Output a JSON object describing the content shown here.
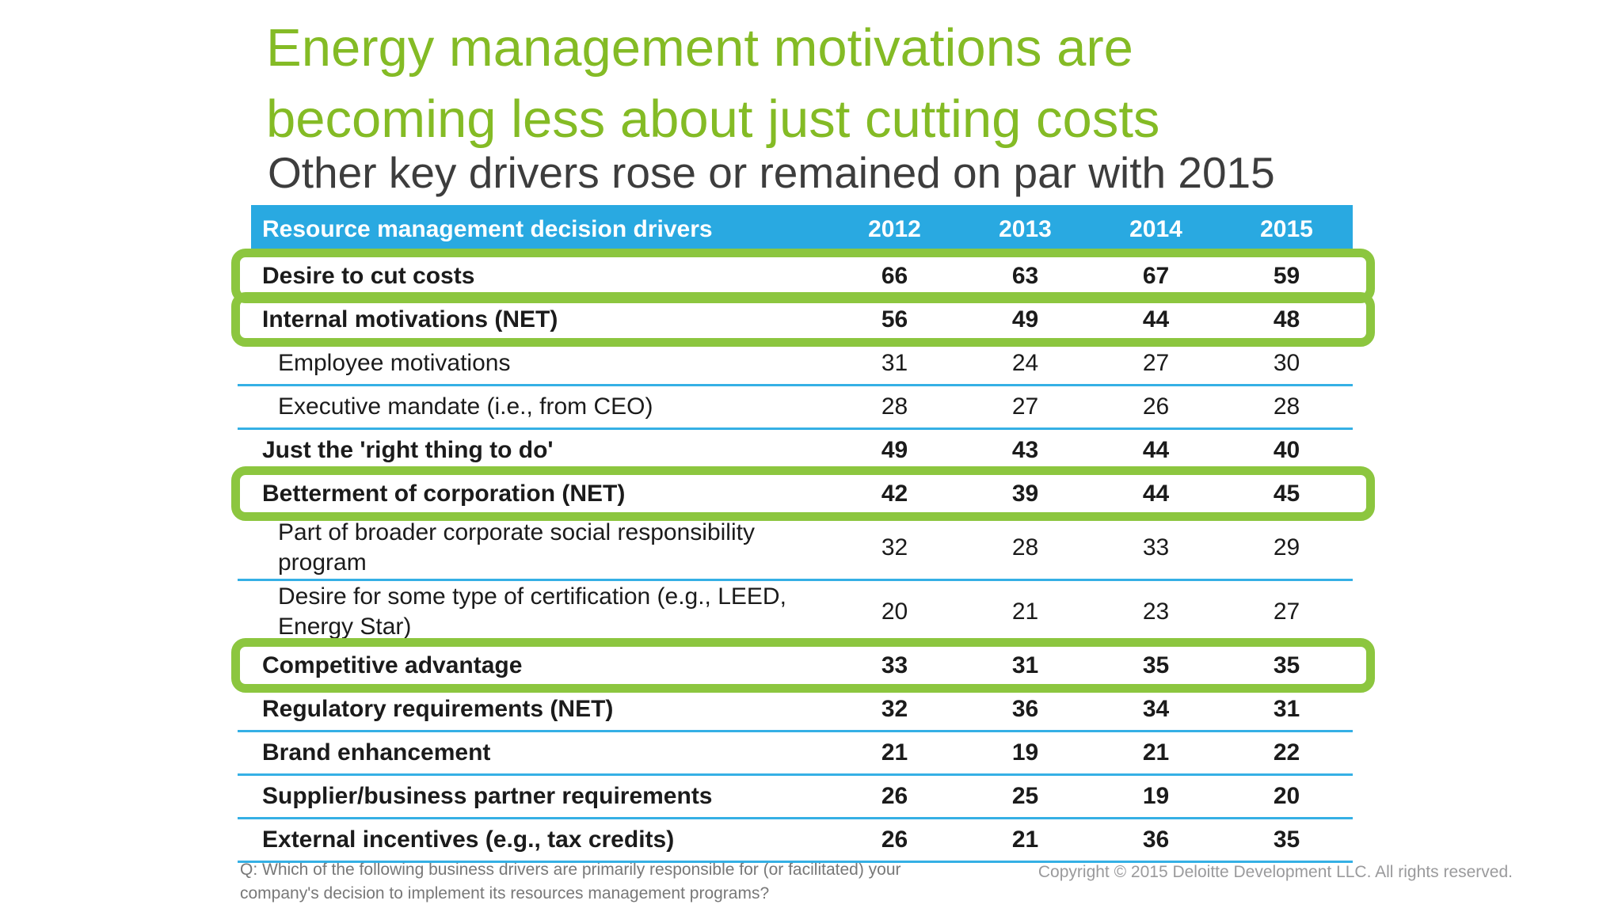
{
  "slide": {
    "title_line1": "Energy management motivations are",
    "title_line2": "becoming less about just cutting costs",
    "subtitle": "Other key drivers rose or remained on par with 2015",
    "footnote": "Q: Which of the following business drivers are primarily responsible for (or facilitated) your company's decision to implement its resources management programs?",
    "copyright": "Copyright © 2015 Deloitte Development LLC. All rights reserved."
  },
  "colors": {
    "title_green": "#84BB25",
    "highlight_box_green": "#8CC63F",
    "header_blue": "#29A9E1",
    "row_divider_blue": "#35B0E5"
  },
  "table": {
    "header": {
      "label": "Resource management decision drivers",
      "years": [
        "2012",
        "2013",
        "2014",
        "2015"
      ]
    },
    "rows": [
      {
        "label": "Desire to cut costs",
        "values": [
          "66",
          "63",
          "67",
          "59"
        ],
        "bold": true,
        "highlighted": true
      },
      {
        "label": "Internal motivations (NET)",
        "values": [
          "56",
          "49",
          "44",
          "48"
        ],
        "bold": true,
        "highlighted": true
      },
      {
        "label": "Employee motivations",
        "values": [
          "31",
          "24",
          "27",
          "30"
        ],
        "bold": false,
        "highlighted": false
      },
      {
        "label": "Executive mandate (i.e., from CEO)",
        "values": [
          "28",
          "27",
          "26",
          "28"
        ],
        "bold": false,
        "highlighted": false
      },
      {
        "label": "Just the 'right thing to do'",
        "values": [
          "49",
          "43",
          "44",
          "40"
        ],
        "bold": true,
        "highlighted": false
      },
      {
        "label": "Betterment of corporation (NET)",
        "values": [
          "42",
          "39",
          "44",
          "45"
        ],
        "bold": true,
        "highlighted": true
      },
      {
        "label": "Part of broader corporate social responsibility program",
        "values": [
          "32",
          "28",
          "33",
          "29"
        ],
        "bold": false,
        "highlighted": false
      },
      {
        "label": "Desire for some type of certification (e.g., LEED, Energy Star)",
        "values": [
          "20",
          "21",
          "23",
          "27"
        ],
        "bold": false,
        "highlighted": false
      },
      {
        "label": "Competitive advantage",
        "values": [
          "33",
          "31",
          "35",
          "35"
        ],
        "bold": true,
        "highlighted": true
      },
      {
        "label": "Regulatory requirements (NET)",
        "values": [
          "32",
          "36",
          "34",
          "31"
        ],
        "bold": true,
        "highlighted": false
      },
      {
        "label": "Brand enhancement",
        "values": [
          "21",
          "19",
          "21",
          "22"
        ],
        "bold": true,
        "highlighted": false
      },
      {
        "label": "Supplier/business partner requirements",
        "values": [
          "26",
          "25",
          "19",
          "20"
        ],
        "bold": true,
        "highlighted": false
      },
      {
        "label": "External incentives (e.g., tax credits)",
        "values": [
          "26",
          "21",
          "36",
          "35"
        ],
        "bold": true,
        "highlighted": false
      }
    ]
  }
}
